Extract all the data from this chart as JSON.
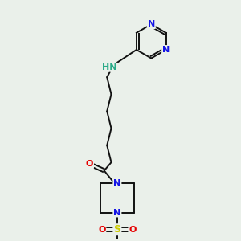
{
  "background_color": "#eaf0ea",
  "bond_color": "#111111",
  "N_color": "#1414e6",
  "O_color": "#e60000",
  "S_color": "#cccc00",
  "H_color": "#2aaa88",
  "figsize": [
    3.0,
    3.0
  ],
  "dpi": 100,
  "xlim": [
    0,
    10
  ],
  "ylim": [
    0,
    10
  ]
}
